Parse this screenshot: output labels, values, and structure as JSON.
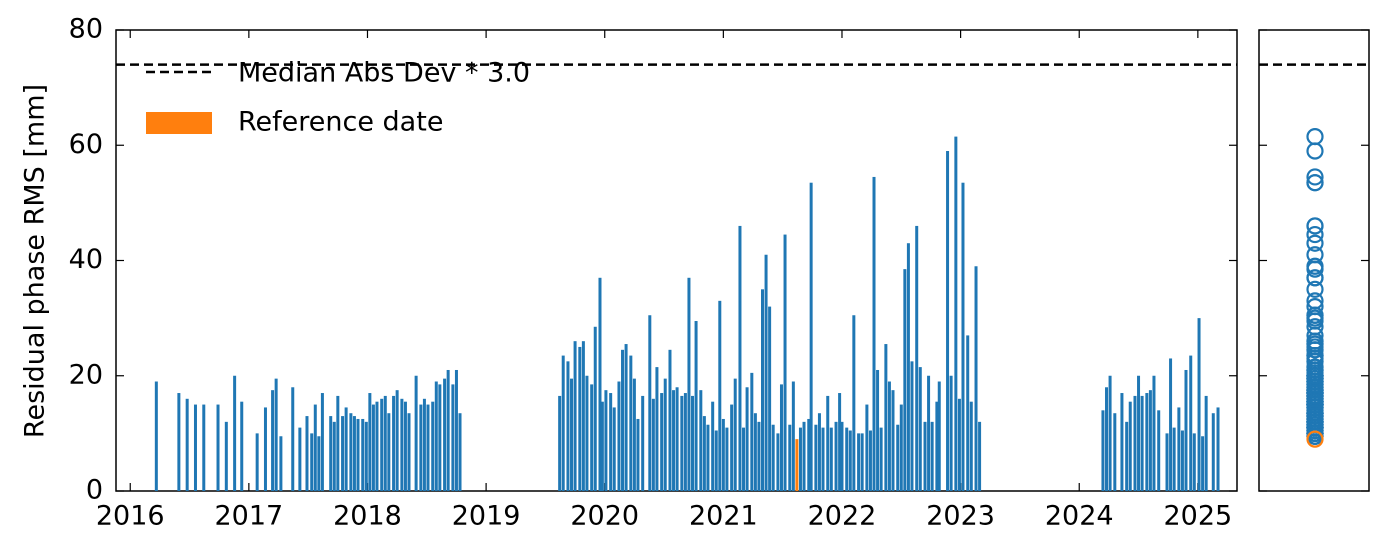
{
  "chart_data": {
    "type": "bar",
    "y_label": "Residual phase RMS [mm]",
    "xlim": [
      2015.88,
      2025.33
    ],
    "xticks": [
      2016,
      2017,
      2018,
      2019,
      2020,
      2021,
      2022,
      2023,
      2024,
      2025
    ],
    "ylim": [
      0,
      80
    ],
    "yticks": [
      0,
      20,
      40,
      60,
      80
    ],
    "threshold": {
      "name": "Median Abs Dev * 3.0",
      "value": 74,
      "color": "#000000"
    },
    "series": [
      {
        "color": "#1f77b4",
        "x": [
          2016.22,
          2016.41,
          2016.48,
          2016.55,
          2016.62,
          2016.74,
          2016.81,
          2016.88,
          2016.94,
          2017.07,
          2017.14,
          2017.2,
          2017.23,
          2017.27,
          2017.37,
          2017.43,
          2017.49,
          2017.53,
          2017.56,
          2017.59,
          2017.62,
          2017.69,
          2017.72,
          2017.75,
          2017.79,
          2017.82,
          2017.86,
          2017.89,
          2017.92,
          2017.96,
          2017.99,
          2018.02,
          2018.05,
          2018.08,
          2018.12,
          2018.15,
          2018.18,
          2018.22,
          2018.25,
          2018.29,
          2018.32,
          2018.35,
          2018.41,
          2018.45,
          2018.48,
          2018.51,
          2018.55,
          2018.58,
          2018.61,
          2018.65,
          2018.68,
          2018.72,
          2018.75,
          2018.78,
          2019.62,
          2019.65,
          2019.69,
          2019.72,
          2019.75,
          2019.79,
          2019.82,
          2019.85,
          2019.89,
          2019.92,
          2019.96,
          2019.98,
          2020.01,
          2020.05,
          2020.08,
          2020.12,
          2020.15,
          2020.18,
          2020.22,
          2020.25,
          2020.28,
          2020.32,
          2020.38,
          2020.41,
          2020.44,
          2020.48,
          2020.51,
          2020.55,
          2020.58,
          2020.61,
          2020.65,
          2020.68,
          2020.71,
          2020.74,
          2020.77,
          2020.81,
          2020.84,
          2020.87,
          2020.91,
          2020.94,
          2020.97,
          2021.0,
          2021.03,
          2021.07,
          2021.1,
          2021.14,
          2021.17,
          2021.2,
          2021.24,
          2021.27,
          2021.3,
          2021.33,
          2021.36,
          2021.39,
          2021.42,
          2021.46,
          2021.49,
          2021.52,
          2021.56,
          2021.59,
          2021.65,
          2021.68,
          2021.72,
          2021.74,
          2021.78,
          2021.81,
          2021.84,
          2021.88,
          2021.91,
          2021.95,
          2021.98,
          2022.0,
          2022.04,
          2022.07,
          2022.1,
          2022.14,
          2022.17,
          2022.21,
          2022.24,
          2022.27,
          2022.3,
          2022.33,
          2022.37,
          2022.4,
          2022.43,
          2022.47,
          2022.5,
          2022.53,
          2022.56,
          2022.59,
          2022.63,
          2022.66,
          2022.7,
          2022.73,
          2022.76,
          2022.8,
          2022.82,
          2022.89,
          2022.92,
          2022.96,
          2022.99,
          2023.02,
          2023.06,
          2023.09,
          2023.13,
          2023.16,
          2024.2,
          2024.23,
          2024.26,
          2024.3,
          2024.36,
          2024.4,
          2024.43,
          2024.47,
          2024.5,
          2024.53,
          2024.57,
          2024.6,
          2024.63,
          2024.67,
          2024.74,
          2024.77,
          2024.8,
          2024.84,
          2024.87,
          2024.9,
          2024.94,
          2024.97,
          2025.01,
          2025.04,
          2025.07,
          2025.13,
          2025.17
        ],
        "values": [
          19,
          17,
          16,
          15,
          15,
          15,
          12,
          20,
          15.5,
          10,
          14.5,
          17.5,
          19.5,
          9.5,
          18,
          11,
          13,
          10,
          15,
          9.5,
          17,
          13,
          12,
          16.5,
          13,
          14.5,
          13.5,
          13,
          12.5,
          12.5,
          12,
          17,
          15,
          15.5,
          16,
          16.5,
          13.5,
          16.5,
          17.5,
          16,
          15.5,
          13.5,
          20,
          15,
          16,
          15,
          15.5,
          19,
          18.5,
          19.5,
          21,
          18.5,
          21,
          13.5,
          16.5,
          23.5,
          22.5,
          19.5,
          26,
          25,
          26,
          20,
          18.5,
          28.5,
          37,
          15.5,
          17.5,
          17,
          14.5,
          19,
          24.5,
          25.5,
          23.5,
          19.5,
          12.5,
          16.5,
          30.5,
          16,
          21.5,
          17,
          19.5,
          24.5,
          17.5,
          18,
          16.5,
          17,
          37,
          16.5,
          29.5,
          17.5,
          13,
          11.5,
          15.5,
          10.5,
          33,
          12.5,
          11,
          15,
          19.5,
          46,
          11,
          18,
          20.5,
          13.5,
          12,
          35,
          41,
          32,
          11.5,
          10,
          18.5,
          44.5,
          11.5,
          19,
          11,
          12,
          12.5,
          53.5,
          11.5,
          13.5,
          11,
          16.5,
          11,
          12,
          17,
          12,
          11,
          10.5,
          30.5,
          10,
          10,
          15,
          10.5,
          54.5,
          21,
          11,
          25.5,
          19,
          17.5,
          11.5,
          15,
          38.5,
          43,
          22.5,
          46,
          21.5,
          12,
          20,
          12,
          15.5,
          19,
          59,
          20,
          61.5,
          16,
          53.5,
          27,
          15.5,
          39,
          12,
          14,
          18,
          20,
          13.5,
          17,
          12,
          15.5,
          16.5,
          20,
          16.5,
          17,
          17.5,
          20,
          14,
          10,
          23,
          11,
          14.5,
          10.5,
          21,
          23.5,
          10,
          30,
          9.5,
          16.5,
          13.5,
          14.5
        ]
      },
      {
        "name": "Reference date",
        "color": "#ff7f0e",
        "x": [
          2021.62
        ],
        "values": [
          9
        ]
      }
    ]
  }
}
